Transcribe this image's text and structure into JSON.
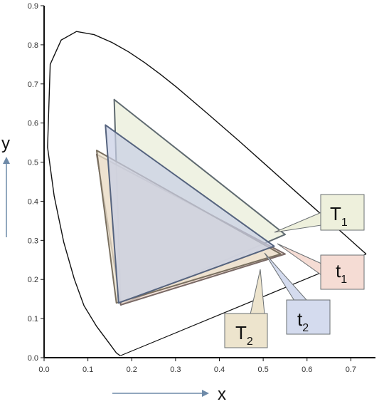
{
  "chart_data": {
    "type": "line",
    "title": "",
    "xlabel": "x",
    "ylabel": "y",
    "xlim": [
      0.0,
      0.75
    ],
    "ylim": [
      0.0,
      0.9
    ],
    "x_ticks": [
      "0.0",
      "0.1",
      "0.2",
      "0.3",
      "0.4",
      "0.5",
      "0.6",
      "0.7"
    ],
    "y_ticks": [
      "0.0",
      "0.1",
      "0.2",
      "0.3",
      "0.4",
      "0.5",
      "0.6",
      "0.7",
      "0.8",
      "0.9"
    ],
    "grid": false,
    "series": [
      {
        "role": "spectral-locus",
        "color": "#111111",
        "points": [
          [
            0.174,
            0.005
          ],
          [
            0.165,
            0.012
          ],
          [
            0.15,
            0.035
          ],
          [
            0.12,
            0.08
          ],
          [
            0.091,
            0.133
          ],
          [
            0.069,
            0.201
          ],
          [
            0.045,
            0.295
          ],
          [
            0.023,
            0.413
          ],
          [
            0.008,
            0.538
          ],
          [
            0.014,
            0.75
          ],
          [
            0.039,
            0.812
          ],
          [
            0.074,
            0.834
          ],
          [
            0.114,
            0.826
          ],
          [
            0.155,
            0.806
          ],
          [
            0.193,
            0.782
          ],
          [
            0.23,
            0.754
          ],
          [
            0.266,
            0.724
          ],
          [
            0.302,
            0.692
          ],
          [
            0.373,
            0.624
          ],
          [
            0.444,
            0.555
          ],
          [
            0.512,
            0.487
          ],
          [
            0.575,
            0.424
          ],
          [
            0.627,
            0.372
          ],
          [
            0.666,
            0.334
          ],
          [
            0.692,
            0.308
          ],
          [
            0.715,
            0.285
          ],
          [
            0.735,
            0.265
          ]
        ],
        "purple_line": [
          [
            0.735,
            0.265
          ],
          [
            0.174,
            0.005
          ]
        ]
      },
      {
        "name": "T1",
        "fill": "#e9edd8",
        "stroke": "#5f6a70",
        "points": [
          [
            0.16,
            0.66
          ],
          [
            0.175,
            0.135
          ],
          [
            0.55,
            0.315
          ]
        ]
      },
      {
        "name": "t1",
        "fill": "#f0d8cc",
        "stroke": "#7a6a66",
        "points": [
          [
            0.12,
            0.52
          ],
          [
            0.175,
            0.135
          ],
          [
            0.55,
            0.265
          ]
        ]
      },
      {
        "name": "T2",
        "fill": "#ece2cc",
        "stroke": "#7a7060",
        "points": [
          [
            0.12,
            0.53
          ],
          [
            0.165,
            0.14
          ],
          [
            0.54,
            0.265
          ]
        ]
      },
      {
        "name": "t2",
        "fill": "#c7cfe4",
        "stroke": "#55637e",
        "points": [
          [
            0.14,
            0.595
          ],
          [
            0.17,
            0.14
          ],
          [
            0.525,
            0.285
          ]
        ]
      }
    ],
    "callouts": [
      {
        "main": "T",
        "sub": "1",
        "fill": "#eef0dc"
      },
      {
        "main": "t",
        "sub": "1",
        "fill": "#f5dcd4"
      },
      {
        "main": "t",
        "sub": "2",
        "fill": "#d4dbee"
      },
      {
        "main": "T",
        "sub": "2",
        "fill": "#ede4cd"
      }
    ],
    "arrow_color": "#6e8aa8"
  }
}
